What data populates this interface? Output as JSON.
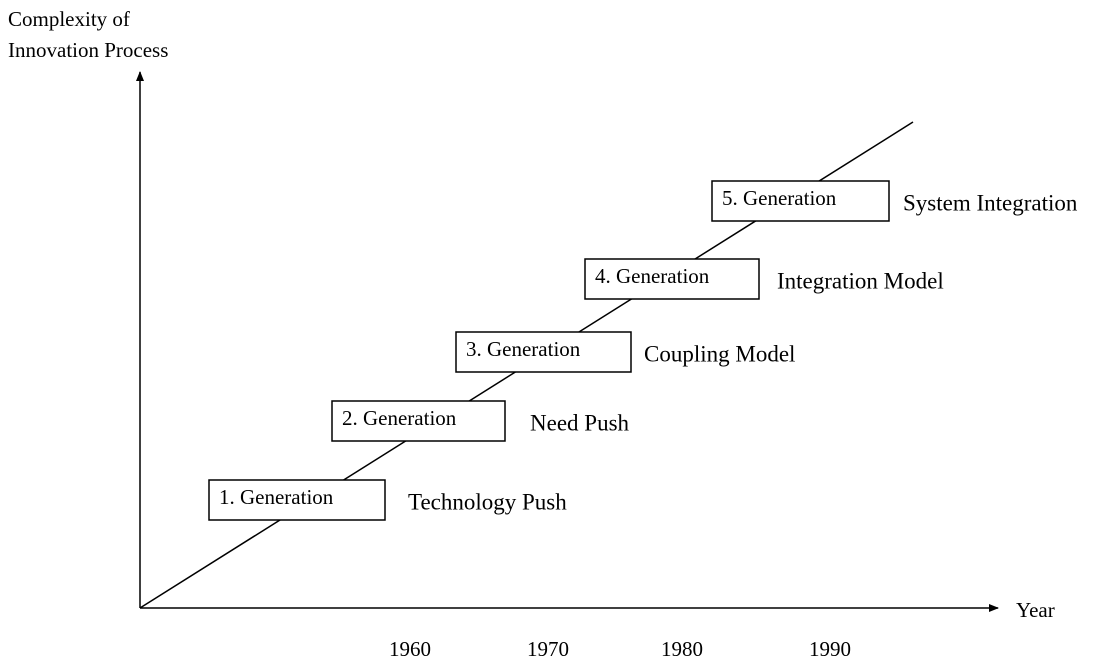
{
  "y_axis": {
    "label_lines": [
      "Complexity of",
      "Innovation Process"
    ]
  },
  "x_axis": {
    "label": "Year",
    "years": [
      "1960",
      "1970",
      "1980",
      "1990"
    ]
  },
  "generations": [
    {
      "label": "1. Generation",
      "model": "Technology Push"
    },
    {
      "label": "2. Generation",
      "model": "Need Push"
    },
    {
      "label": "3. Generation",
      "model": "Coupling Model"
    },
    {
      "label": "4. Generation",
      "model": "Integration Model"
    },
    {
      "label": "5. Generation",
      "model": "System Integration"
    }
  ]
}
